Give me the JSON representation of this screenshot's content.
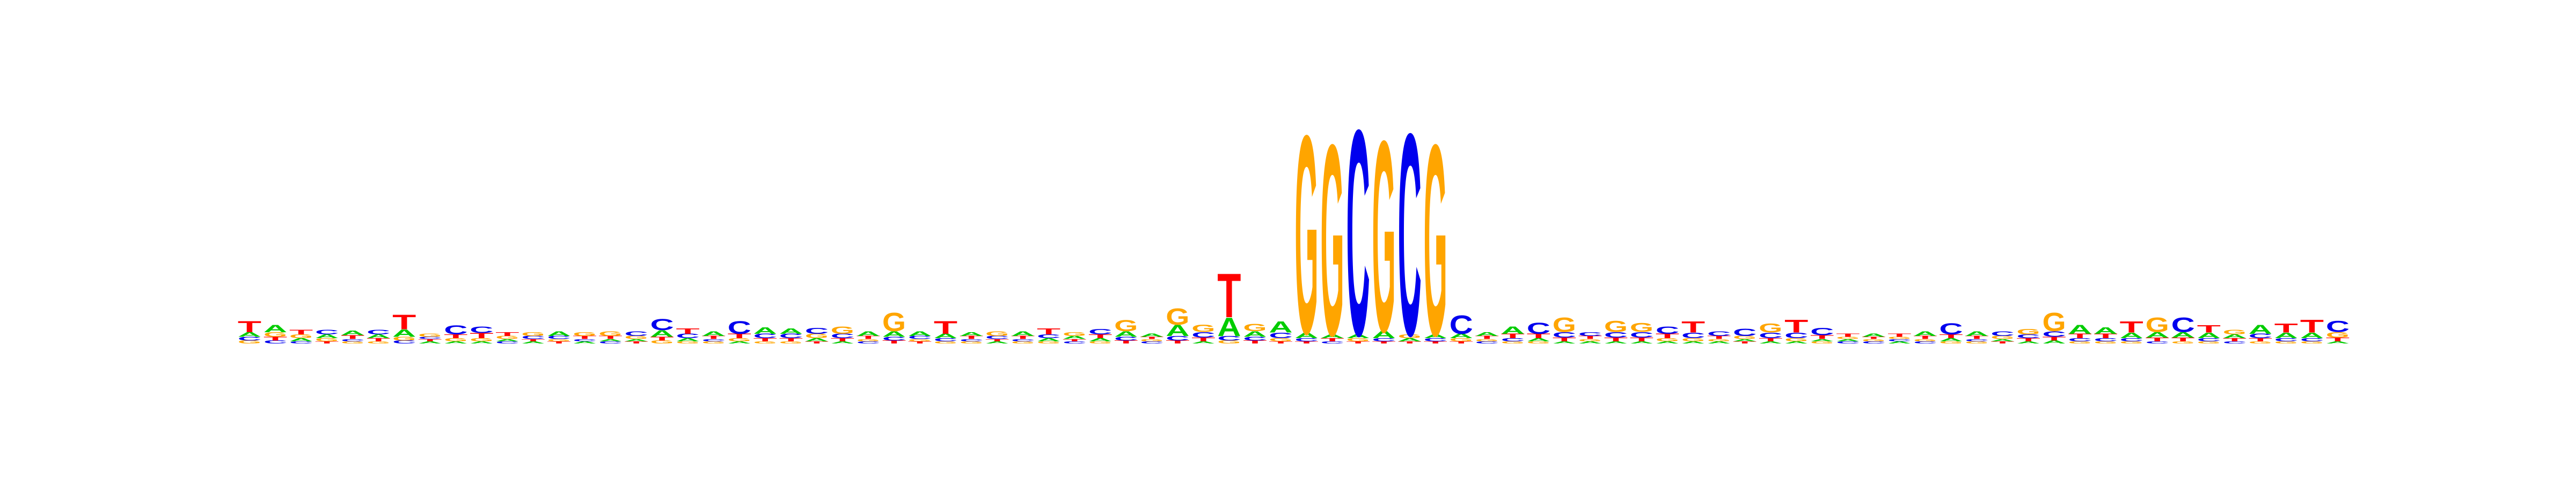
{
  "colors": {
    "A": "#00cc00",
    "C": "#0000ee",
    "G": "#ffa500",
    "T": "#ff0000"
  },
  "logo": {
    "positions": [
      {
        "T": 0.03,
        "A": 0.012,
        "C": 0.01,
        "G": 0.008
      },
      {
        "A": 0.02,
        "G": 0.012,
        "T": 0.01,
        "C": 0.008
      },
      {
        "T": 0.012,
        "G": 0.01,
        "A": 0.008,
        "C": 0.006
      },
      {
        "C": 0.012,
        "A": 0.01,
        "G": 0.008,
        "T": 0.006
      },
      {
        "A": 0.012,
        "T": 0.01,
        "G": 0.006,
        "C": 0.006
      },
      {
        "C": 0.012,
        "A": 0.01,
        "T": 0.008,
        "G": 0.006
      },
      {
        "T": 0.04,
        "A": 0.02,
        "G": 0.01,
        "C": 0.008
      },
      {
        "G": 0.008,
        "A": 0.006,
        "T": 0.006,
        "C": 0.006
      },
      {
        "C": 0.025,
        "T": 0.01,
        "G": 0.008,
        "A": 0.006
      },
      {
        "C": 0.018,
        "T": 0.014,
        "G": 0.008,
        "A": 0.006
      },
      {
        "T": 0.01,
        "G": 0.008,
        "C": 0.006,
        "A": 0.006
      },
      {
        "G": 0.01,
        "C": 0.008,
        "A": 0.006,
        "T": 0.006
      },
      {
        "A": 0.012,
        "C": 0.008,
        "T": 0.006,
        "G": 0.006
      },
      {
        "G": 0.01,
        "T": 0.008,
        "A": 0.006,
        "C": 0.006
      },
      {
        "G": 0.012,
        "T": 0.008,
        "C": 0.006,
        "A": 0.006
      },
      {
        "C": 0.012,
        "G": 0.008,
        "T": 0.006,
        "A": 0.006
      },
      {
        "C": 0.03,
        "A": 0.018,
        "T": 0.01,
        "G": 0.008
      },
      {
        "T": 0.015,
        "C": 0.012,
        "A": 0.008,
        "G": 0.006
      },
      {
        "A": 0.012,
        "T": 0.008,
        "G": 0.006,
        "C": 0.006
      },
      {
        "C": 0.035,
        "T": 0.012,
        "G": 0.008,
        "A": 0.006
      },
      {
        "A": 0.018,
        "C": 0.012,
        "T": 0.008,
        "G": 0.006
      },
      {
        "A": 0.015,
        "C": 0.012,
        "T": 0.008,
        "G": 0.006
      },
      {
        "C": 0.016,
        "G": 0.012,
        "A": 0.008,
        "T": 0.006
      },
      {
        "G": 0.02,
        "C": 0.012,
        "T": 0.008,
        "A": 0.006
      },
      {
        "A": 0.012,
        "T": 0.008,
        "C": 0.006,
        "G": 0.006
      },
      {
        "G": 0.05,
        "A": 0.015,
        "C": 0.01,
        "T": 0.008
      },
      {
        "A": 0.012,
        "C": 0.008,
        "T": 0.006,
        "G": 0.006
      },
      {
        "T": 0.035,
        "A": 0.012,
        "C": 0.008,
        "G": 0.006
      },
      {
        "A": 0.01,
        "T": 0.008,
        "G": 0.006,
        "C": 0.006
      },
      {
        "G": 0.012,
        "C": 0.008,
        "A": 0.006,
        "T": 0.006
      },
      {
        "A": 0.012,
        "T": 0.008,
        "G": 0.006,
        "C": 0.006
      },
      {
        "T": 0.016,
        "C": 0.01,
        "A": 0.008,
        "G": 0.006
      },
      {
        "G": 0.01,
        "A": 0.008,
        "C": 0.006,
        "T": 0.006
      },
      {
        "C": 0.015,
        "T": 0.01,
        "A": 0.008,
        "G": 0.006
      },
      {
        "G": 0.03,
        "A": 0.015,
        "C": 0.01,
        "T": 0.008
      },
      {
        "A": 0.008,
        "C": 0.006,
        "G": 0.006,
        "T": 0.006
      },
      {
        "G": 0.045,
        "A": 0.03,
        "C": 0.012,
        "T": 0.008
      },
      {
        "G": 0.02,
        "C": 0.015,
        "T": 0.01,
        "A": 0.006
      },
      {
        "T": 0.12,
        "A": 0.05,
        "C": 0.012,
        "G": 0.008
      },
      {
        "G": 0.02,
        "A": 0.015,
        "C": 0.01,
        "T": 0.008
      },
      {
        "A": 0.03,
        "C": 0.015,
        "G": 0.008,
        "T": 0.006
      },
      {
        "G": 0.54,
        "A": 0.015,
        "C": 0.008,
        "T": 0.006
      },
      {
        "G": 0.52,
        "A": 0.01,
        "T": 0.008,
        "C": 0.006
      },
      {
        "C": 0.56,
        "A": 0.01,
        "G": 0.008,
        "T": 0.006
      },
      {
        "G": 0.52,
        "A": 0.02,
        "C": 0.008,
        "T": 0.006
      },
      {
        "C": 0.55,
        "G": 0.01,
        "A": 0.008,
        "T": 0.006
      },
      {
        "G": 0.52,
        "A": 0.01,
        "C": 0.008,
        "T": 0.006
      },
      {
        "C": 0.05,
        "A": 0.012,
        "G": 0.008,
        "T": 0.006
      },
      {
        "A": 0.01,
        "T": 0.008,
        "C": 0.006,
        "G": 0.006
      },
      {
        "A": 0.02,
        "T": 0.012,
        "C": 0.008,
        "G": 0.006
      },
      {
        "C": 0.03,
        "T": 0.012,
        "A": 0.008,
        "G": 0.006
      },
      {
        "G": 0.04,
        "C": 0.015,
        "T": 0.01,
        "A": 0.006
      },
      {
        "C": 0.01,
        "T": 0.008,
        "A": 0.006,
        "G": 0.006
      },
      {
        "G": 0.03,
        "C": 0.015,
        "T": 0.01,
        "A": 0.006
      },
      {
        "G": 0.025,
        "C": 0.015,
        "T": 0.01,
        "A": 0.006
      },
      {
        "C": 0.02,
        "T": 0.012,
        "G": 0.008,
        "A": 0.006
      },
      {
        "T": 0.03,
        "C": 0.015,
        "G": 0.008,
        "A": 0.006
      },
      {
        "C": 0.012,
        "T": 0.008,
        "A": 0.006,
        "G": 0.006
      },
      {
        "C": 0.02,
        "G": 0.008,
        "T": 0.006,
        "A": 0.006
      },
      {
        "G": 0.025,
        "C": 0.015,
        "T": 0.008,
        "A": 0.006
      },
      {
        "T": 0.035,
        "C": 0.015,
        "G": 0.008,
        "A": 0.006
      },
      {
        "C": 0.02,
        "T": 0.01,
        "G": 0.006,
        "A": 0.006
      },
      {
        "T": 0.008,
        "C": 0.006,
        "A": 0.006,
        "G": 0.006
      },
      {
        "A": 0.008,
        "C": 0.006,
        "G": 0.006,
        "T": 0.006
      },
      {
        "T": 0.008,
        "A": 0.006,
        "C": 0.006,
        "G": 0.006
      },
      {
        "A": 0.012,
        "T": 0.008,
        "C": 0.006,
        "G": 0.006
      },
      {
        "C": 0.03,
        "T": 0.01,
        "A": 0.008,
        "G": 0.006
      },
      {
        "A": 0.012,
        "T": 0.008,
        "G": 0.006,
        "C": 0.006
      },
      {
        "C": 0.012,
        "G": 0.008,
        "T": 0.006,
        "A": 0.006
      },
      {
        "G": 0.015,
        "C": 0.01,
        "T": 0.008,
        "A": 0.006
      },
      {
        "G": 0.05,
        "C": 0.015,
        "T": 0.01,
        "A": 0.008
      },
      {
        "A": 0.025,
        "T": 0.012,
        "C": 0.008,
        "G": 0.006
      },
      {
        "A": 0.018,
        "T": 0.012,
        "C": 0.008,
        "G": 0.006
      },
      {
        "T": 0.03,
        "A": 0.015,
        "C": 0.008,
        "G": 0.006
      },
      {
        "G": 0.04,
        "A": 0.015,
        "T": 0.01,
        "C": 0.006
      },
      {
        "C": 0.04,
        "A": 0.015,
        "T": 0.01,
        "G": 0.006
      },
      {
        "T": 0.02,
        "A": 0.015,
        "C": 0.008,
        "G": 0.006
      },
      {
        "G": 0.012,
        "A": 0.01,
        "T": 0.008,
        "C": 0.006
      },
      {
        "A": 0.025,
        "C": 0.012,
        "T": 0.008,
        "G": 0.006
      },
      {
        "T": 0.025,
        "A": 0.015,
        "C": 0.008,
        "G": 0.006
      },
      {
        "T": 0.035,
        "A": 0.015,
        "C": 0.008,
        "G": 0.006
      },
      {
        "C": 0.03,
        "G": 0.015,
        "T": 0.01,
        "A": 0.006
      }
    ]
  }
}
